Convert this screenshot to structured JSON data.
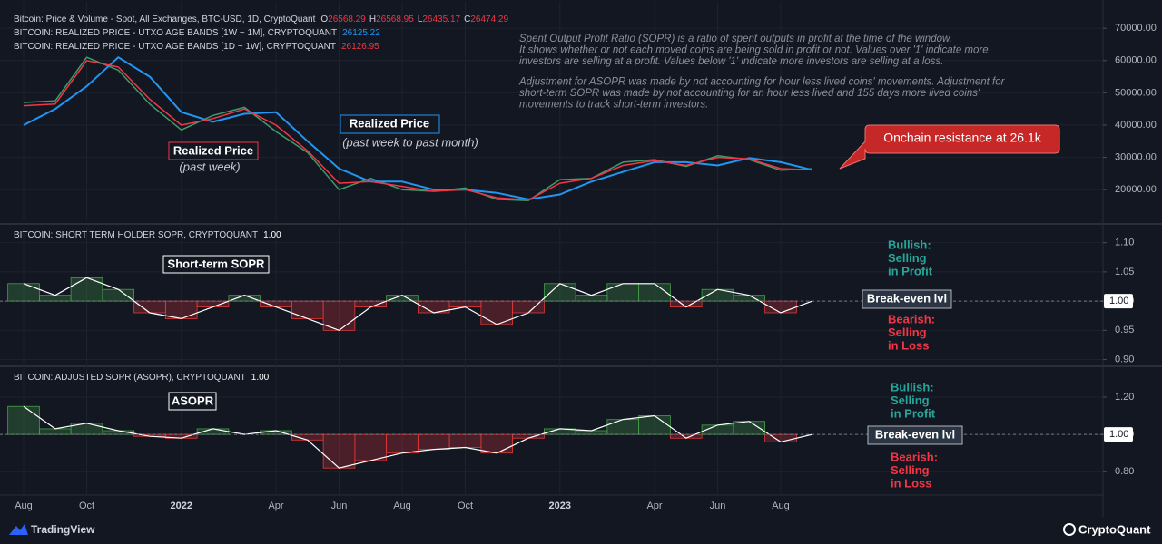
{
  "header": {
    "ohlc": [
      {
        "label": "O",
        "value": 26568.29
      },
      {
        "label": "H",
        "value": 26568.95
      },
      {
        "label": "L",
        "value": 26435.17
      },
      {
        "label": "C",
        "value": 26474.29
      }
    ]
  },
  "description": [
    "Spent Output Profit Ratio (SOPR) is a ratio of spent outputs in profit at the time of the window.",
    "It shows whether or not each moved coins are being sold in profit or not. Values over '1' indicate more",
    "investors are selling at a profit. Values below '1' indicate more investors are selling at a loss.",
    "Adjustment for ASOPR was made by not accounting for hour less lived coins' movements. Adjustment for",
    "short-term SOPR was made by not accounting for an hour less lived and 155 days more lived coins'",
    "movements to track short-term investors."
  ],
  "footer": {
    "left": "TradingView",
    "right": "CryptoQuant"
  },
  "chart_data": [
    {
      "type": "line",
      "categories": [
        "Aug",
        null,
        "Oct",
        null,
        null,
        "2022",
        null,
        null,
        "Apr",
        null,
        "Jun",
        null,
        "Aug",
        null,
        "Oct",
        null,
        null,
        "2023",
        null,
        null,
        "Apr",
        null,
        "Jun",
        null,
        "Aug",
        null
      ],
      "ylim": [
        10500,
        76500
      ],
      "yticks": [
        {
          "value": 20000,
          "label": "20000.00"
        },
        {
          "value": 30000,
          "label": "30000.00"
        },
        {
          "value": 40000,
          "label": "40000.00"
        },
        {
          "value": 50000,
          "label": "50000.00"
        },
        {
          "value": 60000,
          "label": "60000.00"
        },
        {
          "value": 70000,
          "label": "70000.00"
        }
      ],
      "grid": true,
      "resistance_level": 26100,
      "series": [
        {
          "name": "Bitcoin: Price & Volume - Spot, All Exchanges, BTC-USD, 1D, CryptoQuant",
          "color": "#3f9b6a",
          "values": [
            47000,
            47500,
            61000,
            57000,
            46500,
            38500,
            43000,
            45500,
            38000,
            31500,
            20000,
            23500,
            20000,
            19500,
            20500,
            17000,
            16600,
            23100,
            23500,
            28500,
            29300,
            27200,
            30500,
            29300,
            26000,
            26474.29
          ]
        },
        {
          "name": "BITCOIN: REALIZED PRICE - UTXO AGE BANDS [1W ~ 1M], CRYPTOQUANT",
          "color": "#2196f3",
          "values": [
            40000,
            45000,
            52000,
            61000,
            55000,
            44000,
            41000,
            43500,
            44000,
            35000,
            26500,
            22500,
            22500,
            20000,
            20000,
            19000,
            17000,
            18500,
            22500,
            25500,
            28500,
            28500,
            27500,
            29800,
            28500,
            26125.22
          ]
        },
        {
          "name": "BITCOIN: REALIZED PRICE - UTXO AGE BANDS [1D ~ 1W], CRYPTOQUANT",
          "color": "#f23645",
          "values": [
            46000,
            46500,
            60000,
            58000,
            48000,
            40000,
            42000,
            45000,
            40000,
            32000,
            22000,
            22500,
            21000,
            19500,
            20000,
            17500,
            16800,
            22000,
            23500,
            27500,
            29000,
            27500,
            30000,
            29500,
            26500,
            26126.95
          ]
        }
      ],
      "annotations": [
        "Realized Price",
        "(past week)",
        "Realized Price",
        "(past week to past month)",
        "Onchain resistance at 26.1k"
      ]
    },
    {
      "type": "sopr",
      "title": "BITCOIN: SHORT TERM HOLDER SOPR, CRYPTOQUANT",
      "last_label": "1.00",
      "ylim": [
        0.89,
        1.115
      ],
      "yticks": [
        {
          "value": 0.9,
          "label": "0.90"
        },
        {
          "value": 0.95,
          "label": "0.95"
        },
        {
          "value": 1,
          "label": "1.00"
        },
        {
          "value": 1.05,
          "label": "1.05"
        },
        {
          "value": 1.1,
          "label": "1.10"
        }
      ],
      "baseline": 1,
      "color": "#ffffff",
      "values": [
        1.03,
        1.01,
        1.04,
        1.02,
        0.98,
        0.97,
        0.99,
        1.01,
        0.99,
        0.97,
        0.95,
        0.99,
        1.01,
        0.98,
        0.99,
        0.96,
        0.98,
        1.03,
        1.01,
        1.03,
        1.03,
        0.99,
        1.02,
        1.01,
        0.98,
        1.0
      ],
      "annotations": [
        "Short-term SOPR",
        "Bullish:",
        "Selling",
        "in Profit",
        "Break-even lvl",
        "Bearish:",
        "Selling",
        "in Loss"
      ]
    },
    {
      "type": "sopr",
      "title": "BITCOIN: ADJUSTED SOPR (ASOPR), CRYPTOQUANT",
      "last_label": "1.00",
      "ylim": [
        0.68,
        1.36
      ],
      "yticks": [
        {
          "value": 0.8,
          "label": "0.80"
        },
        {
          "value": 1,
          "label": "1.00"
        },
        {
          "value": 1.2,
          "label": "1.20"
        }
      ],
      "baseline": 1,
      "color": "#ffffff",
      "values": [
        1.15,
        1.03,
        1.06,
        1.02,
        0.99,
        0.98,
        1.03,
        1.0,
        1.02,
        0.97,
        0.82,
        0.86,
        0.9,
        0.92,
        0.93,
        0.9,
        0.98,
        1.03,
        1.02,
        1.08,
        1.1,
        0.98,
        1.05,
        1.07,
        0.96,
        1.0
      ],
      "annotations": [
        "ASOPR",
        "Bullish:",
        "Selling",
        "in Profit",
        "Break-even lvl",
        "Bearish:",
        "Selling",
        "in Loss"
      ]
    }
  ]
}
